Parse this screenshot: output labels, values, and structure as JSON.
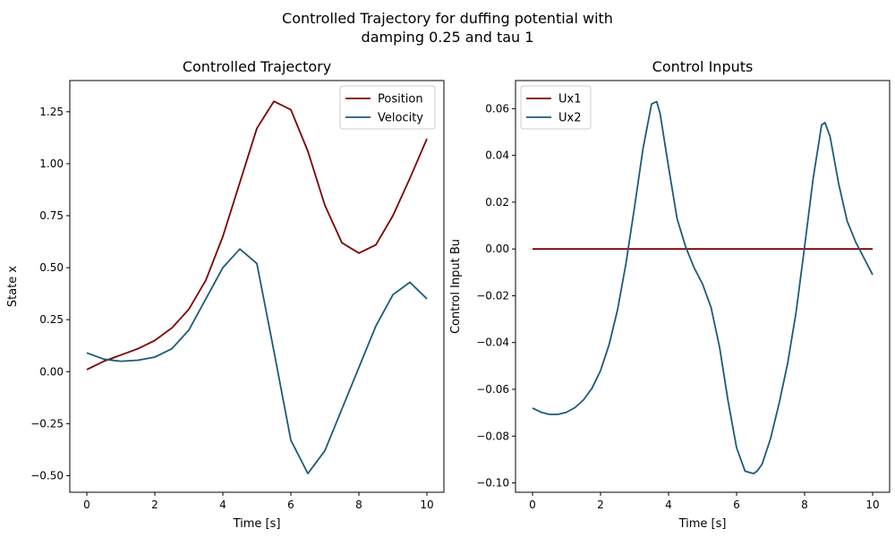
{
  "figure": {
    "title_line1": "Controlled Trajectory for duffing potential with",
    "title_line2": "damping 0.25 and tau 1"
  },
  "colors": {
    "series1": "#7b0000",
    "series2": "#1d5a7a"
  },
  "chart_data": [
    {
      "type": "line",
      "title": "Controlled Trajectory",
      "xlabel": "Time [s]",
      "ylabel": "State x",
      "xlim": [
        -0.5,
        10.5
      ],
      "ylim": [
        -0.58,
        1.4
      ],
      "xticks": [
        0,
        2,
        4,
        6,
        8,
        10
      ],
      "xtick_labels": [
        "0",
        "2",
        "4",
        "6",
        "8",
        "10"
      ],
      "yticks": [
        -0.5,
        -0.25,
        0,
        0.25,
        0.5,
        0.75,
        1.0,
        1.25
      ],
      "ytick_labels": [
        "−0.50",
        "−0.25",
        "0.00",
        "0.25",
        "0.50",
        "0.75",
        "1.00",
        "1.25"
      ],
      "legend_position": "top-right",
      "series": [
        {
          "name": "Position",
          "color": "#7b0000",
          "x": [
            0,
            0.5,
            1,
            1.5,
            2,
            2.5,
            3,
            3.5,
            4,
            4.5,
            5,
            5.5,
            6,
            6.5,
            7,
            7.5,
            8,
            8.5,
            9,
            9.5,
            10
          ],
          "y": [
            0.01,
            0.05,
            0.08,
            0.11,
            0.15,
            0.21,
            0.3,
            0.44,
            0.65,
            0.91,
            1.17,
            1.3,
            1.26,
            1.06,
            0.8,
            0.62,
            0.57,
            0.61,
            0.75,
            0.93,
            1.12
          ]
        },
        {
          "name": "Velocity",
          "color": "#1d5a7a",
          "x": [
            0,
            0.5,
            1,
            1.5,
            2,
            2.5,
            3,
            3.5,
            4,
            4.5,
            5,
            5.5,
            6,
            6.5,
            7,
            7.5,
            8,
            8.5,
            9,
            9.5,
            10
          ],
          "y": [
            0.09,
            0.06,
            0.05,
            0.055,
            0.07,
            0.11,
            0.2,
            0.35,
            0.5,
            0.59,
            0.52,
            0.1,
            -0.33,
            -0.49,
            -0.38,
            -0.18,
            0.02,
            0.22,
            0.37,
            0.43,
            0.35
          ]
        }
      ]
    },
    {
      "type": "line",
      "title": "Control Inputs",
      "xlabel": "Time [s]",
      "ylabel": "Control Input Bu",
      "xlim": [
        -0.5,
        10.5
      ],
      "ylim": [
        -0.104,
        0.072
      ],
      "xticks": [
        0,
        2,
        4,
        6,
        8,
        10
      ],
      "xtick_labels": [
        "0",
        "2",
        "4",
        "6",
        "8",
        "10"
      ],
      "yticks": [
        -0.1,
        -0.08,
        -0.06,
        -0.04,
        -0.02,
        0,
        0.02,
        0.04,
        0.06
      ],
      "ytick_labels": [
        "−0.10",
        "−0.08",
        "−0.06",
        "−0.04",
        "−0.02",
        "0.00",
        "0.02",
        "0.04",
        "0.06"
      ],
      "legend_position": "top-left",
      "series": [
        {
          "name": "Ux1",
          "color": "#7b0000",
          "x": [
            0,
            10
          ],
          "y": [
            0,
            0
          ]
        },
        {
          "name": "Ux2",
          "color": "#1d5a7a",
          "x": [
            0,
            0.25,
            0.5,
            0.75,
            1,
            1.25,
            1.5,
            1.75,
            2,
            2.25,
            2.5,
            2.75,
            3,
            3.25,
            3.5,
            3.65,
            3.75,
            4,
            4.25,
            4.5,
            4.75,
            5,
            5.25,
            5.5,
            5.75,
            6,
            6.25,
            6.5,
            6.6,
            6.75,
            7,
            7.25,
            7.5,
            7.75,
            8,
            8.25,
            8.5,
            8.6,
            8.75,
            9,
            9.25,
            9.5,
            9.75,
            10
          ],
          "y": [
            -0.068,
            -0.0698,
            -0.0707,
            -0.0707,
            -0.0698,
            -0.0678,
            -0.0645,
            -0.0595,
            -0.052,
            -0.041,
            -0.026,
            -0.006,
            0.018,
            0.043,
            0.062,
            0.063,
            0.058,
            0.035,
            0.013,
            0.001,
            -0.008,
            -0.015,
            -0.025,
            -0.042,
            -0.065,
            -0.085,
            -0.095,
            -0.096,
            -0.095,
            -0.092,
            -0.081,
            -0.066,
            -0.049,
            -0.027,
            0.001,
            0.03,
            0.053,
            0.054,
            0.048,
            0.028,
            0.012,
            0.003,
            -0.004,
            -0.011
          ]
        }
      ]
    }
  ]
}
